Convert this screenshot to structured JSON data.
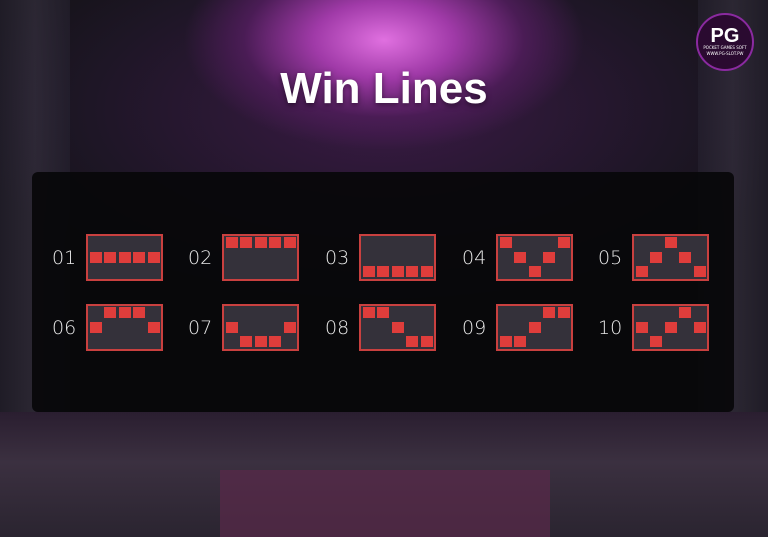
{
  "title": "Win Lines",
  "logo": {
    "mark": "PG",
    "line1": "POCKET GAMES SOFT",
    "line2": "WWW.PG-SLOT.PW"
  },
  "colors": {
    "accent": "#df3d3b",
    "box_bg": "#34313a",
    "border": "#c9403f"
  },
  "grid": {
    "columns": 5,
    "rows": 3
  },
  "lines": [
    {
      "label": "01",
      "rows": [
        1,
        1,
        1,
        1,
        1
      ]
    },
    {
      "label": "02",
      "rows": [
        0,
        0,
        0,
        0,
        0
      ]
    },
    {
      "label": "03",
      "rows": [
        2,
        2,
        2,
        2,
        2
      ]
    },
    {
      "label": "04",
      "rows": [
        0,
        1,
        2,
        1,
        0
      ]
    },
    {
      "label": "05",
      "rows": [
        2,
        1,
        0,
        1,
        2
      ]
    },
    {
      "label": "06",
      "rows": [
        1,
        0,
        0,
        0,
        1
      ]
    },
    {
      "label": "07",
      "rows": [
        1,
        2,
        2,
        2,
        1
      ]
    },
    {
      "label": "08",
      "rows": [
        0,
        0,
        1,
        2,
        2
      ]
    },
    {
      "label": "09",
      "rows": [
        2,
        2,
        1,
        0,
        0
      ]
    },
    {
      "label": "10",
      "rows": [
        1,
        2,
        1,
        0,
        1
      ]
    }
  ]
}
